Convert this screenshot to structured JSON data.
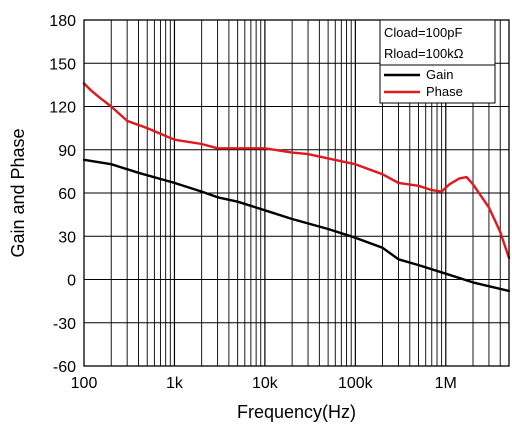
{
  "chart_data": {
    "type": "line",
    "xlabel": "Frequency(Hz)",
    "ylabel": "Gain and Phase",
    "x_scale": "log",
    "xlim": [
      100,
      5000000
    ],
    "ylim": [
      -60,
      180
    ],
    "grid": true,
    "x_ticks": [
      100,
      1000,
      10000,
      100000,
      1000000
    ],
    "x_tick_labels": [
      "100",
      "1k",
      "10k",
      "100k",
      "1M"
    ],
    "y_ticks": [
      -60,
      -30,
      0,
      30,
      60,
      90,
      120,
      150,
      180
    ],
    "y_tick_labels": [
      "-60",
      "-30",
      "0",
      "30",
      "60",
      "90",
      "120",
      "150",
      "180"
    ],
    "legend": {
      "placement": "top-right",
      "notes": [
        "Cload=100pF",
        "Rload=100kΩ"
      ]
    },
    "series": [
      {
        "name": "Gain",
        "color": "#000000",
        "x": [
          100,
          200,
          400,
          1000,
          2000,
          3000,
          5000,
          10000,
          20000,
          50000,
          100000,
          200000,
          300000,
          500000,
          1000000,
          2000000,
          5000000
        ],
        "y": [
          83,
          80,
          74,
          67,
          61,
          57,
          54,
          48,
          42,
          35,
          29,
          22,
          14,
          10,
          4,
          -2,
          -8
        ]
      },
      {
        "name": "Phase",
        "color": "#e0191e",
        "x": [
          100,
          120,
          150,
          200,
          300,
          500,
          1000,
          2000,
          3000,
          5000,
          10000,
          20000,
          30000,
          50000,
          100000,
          200000,
          300000,
          500000,
          700000,
          900000,
          1100000,
          1400000,
          1700000,
          2000000,
          3000000,
          4000000,
          5000000
        ],
        "y": [
          136,
          131,
          126,
          120,
          110,
          105,
          97,
          94,
          91,
          91,
          91,
          88,
          87,
          84,
          80,
          73,
          67,
          65,
          62,
          61,
          66,
          70,
          71,
          66,
          50,
          33,
          15
        ]
      }
    ]
  }
}
